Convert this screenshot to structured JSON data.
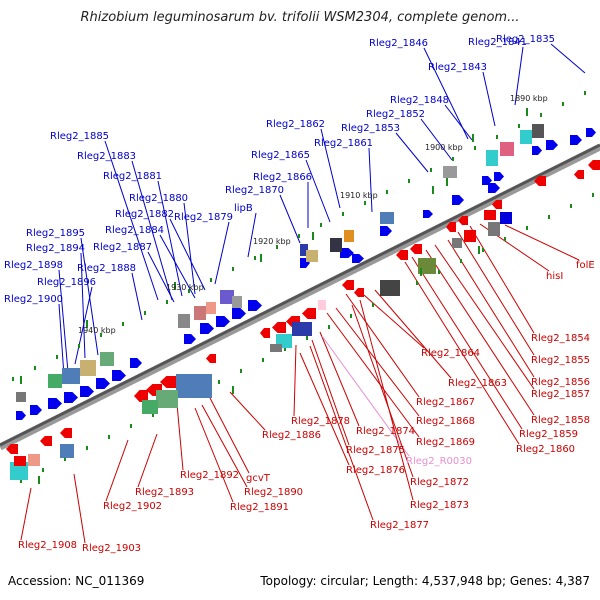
{
  "title": "Rhizobium leguminosarum bv. trifolii WSM2304, complete genom...",
  "footer": {
    "accession": "Accession: NC_011369",
    "summary": "Topology: circular; Length: 4,537,948 bp; Genes: 4,387"
  },
  "colors": {
    "forward_label": "#0000cc",
    "reverse_label": "#cc0000",
    "rna_label": "#e68fcf",
    "forward_gene": "#0000ee",
    "reverse_gene": "#ee0000",
    "backbone": "#777777",
    "tick": "#1a8a1a"
  },
  "kbp_ticks": [
    "1890 kbp",
    "1900 kbp",
    "1910 kbp",
    "1920 kbp",
    "1930 kbp",
    "1940 kbp"
  ],
  "upper_labels": [
    "Rleg2_1835",
    "Rleg2_1841",
    "Rleg2_1846",
    "Rleg2_1843",
    "Rleg2_1848",
    "Rleg2_1852",
    "Rleg2_1853",
    "Rleg2_1862",
    "Rleg2_1861",
    "Rleg2_1865",
    "Rleg2_1866",
    "Rleg2_1870",
    "lipB",
    "Rleg2_1885",
    "Rleg2_1883",
    "Rleg2_1881",
    "Rleg2_1880",
    "Rleg2_1882",
    "Rleg2_1879",
    "Rleg2_1884",
    "Rleg2_1887",
    "Rleg2_1895",
    "Rleg2_1894",
    "Rleg2_1898",
    "Rleg2_1896",
    "Rleg2_1888",
    "Rleg2_1900"
  ],
  "lower_labels": [
    "folE",
    "hisI",
    "Rleg2_1854",
    "Rleg2_1855",
    "Rleg2_1856",
    "Rleg2_1857",
    "Rleg2_1858",
    "Rleg2_1859",
    "Rleg2_1860",
    "Rleg2_1864",
    "Rleg2_1863",
    "Rleg2_1867",
    "Rleg2_1868",
    "Rleg2_1869",
    "Rleg2_1878",
    "Rleg2_1874",
    "Rleg2_1875",
    "Rleg2_R0030",
    "Rleg2_1876",
    "Rleg2_1872",
    "Rleg2_1873",
    "Rleg2_1877",
    "Rleg2_1886",
    "Rleg2_1892",
    "gcvT",
    "Rleg2_1890",
    "Rleg2_1891",
    "Rleg2_1893",
    "Rleg2_1902",
    "Rleg2_1908",
    "Rleg2_1903"
  ]
}
